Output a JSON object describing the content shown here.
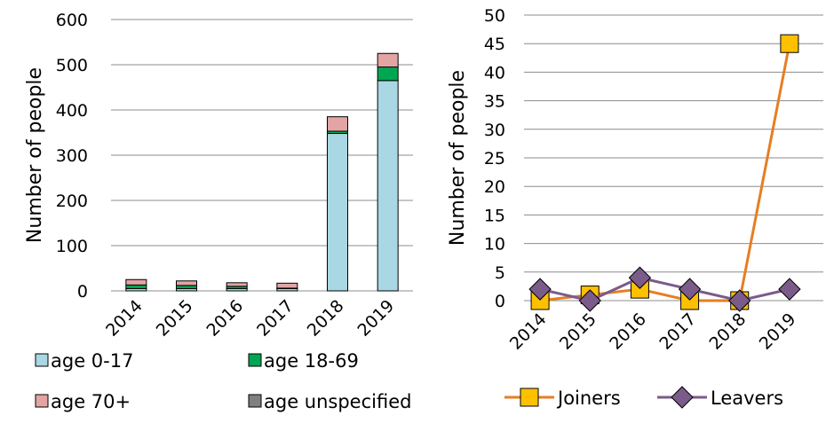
{
  "chart_data": [
    {
      "type": "bar",
      "stacked": true,
      "categories": [
        "2014",
        "2015",
        "2016",
        "2017",
        "2018",
        "2019"
      ],
      "series": [
        {
          "name": "age 0-17",
          "color": "#a9d7e3",
          "values": [
            5,
            5,
            5,
            5,
            348,
            465
          ]
        },
        {
          "name": "age 18-69",
          "color": "#00a651",
          "values": [
            8,
            7,
            5,
            1,
            5,
            30
          ]
        },
        {
          "name": "age 70+",
          "color": "#e3a4a4",
          "values": [
            12,
            10,
            8,
            11,
            32,
            30
          ]
        },
        {
          "name": "age unspecified",
          "color": "#808080",
          "values": [
            0,
            0,
            0,
            0,
            0,
            0
          ]
        }
      ],
      "ylabel": "Number of people",
      "ylim": [
        0,
        600
      ],
      "yticks": [
        "0",
        "100",
        "200",
        "300",
        "400",
        "500",
        "600"
      ],
      "grid": true,
      "legend": "bottom"
    },
    {
      "type": "line",
      "categories": [
        "2014",
        "2015",
        "2016",
        "2017",
        "2018",
        "2019"
      ],
      "series": [
        {
          "name": "Joiners",
          "color": "#e67e22",
          "marker_fill": "#ffc000",
          "marker": "square",
          "values": [
            0,
            1,
            2,
            0,
            0,
            45
          ]
        },
        {
          "name": "Leavers",
          "color": "#7b5b8a",
          "marker_fill": "#7b5b8a",
          "marker": "diamond",
          "values": [
            2,
            0,
            4,
            2,
            0,
            2
          ]
        }
      ],
      "ylabel": "Number of people",
      "ylim": [
        0,
        50
      ],
      "yticks": [
        "0",
        "5",
        "10",
        "15",
        "20",
        "25",
        "30",
        "35",
        "40",
        "45",
        "50"
      ],
      "grid": true,
      "legend": "bottom"
    }
  ]
}
